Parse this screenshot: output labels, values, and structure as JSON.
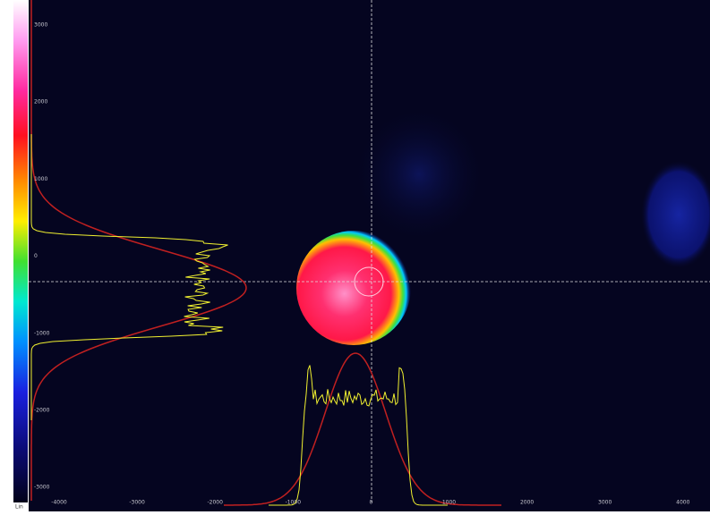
{
  "colorbar": {
    "label": "Lin"
  },
  "y_axis": {
    "labels": [
      "3000",
      "2000",
      "1000",
      "0",
      "-1000",
      "-2000",
      "-3000"
    ]
  },
  "x_axis": {
    "labels": [
      "-4000",
      "-3000",
      "-2000",
      "-1000",
      "0",
      "1000",
      "2000",
      "3000",
      "4000"
    ]
  }
}
